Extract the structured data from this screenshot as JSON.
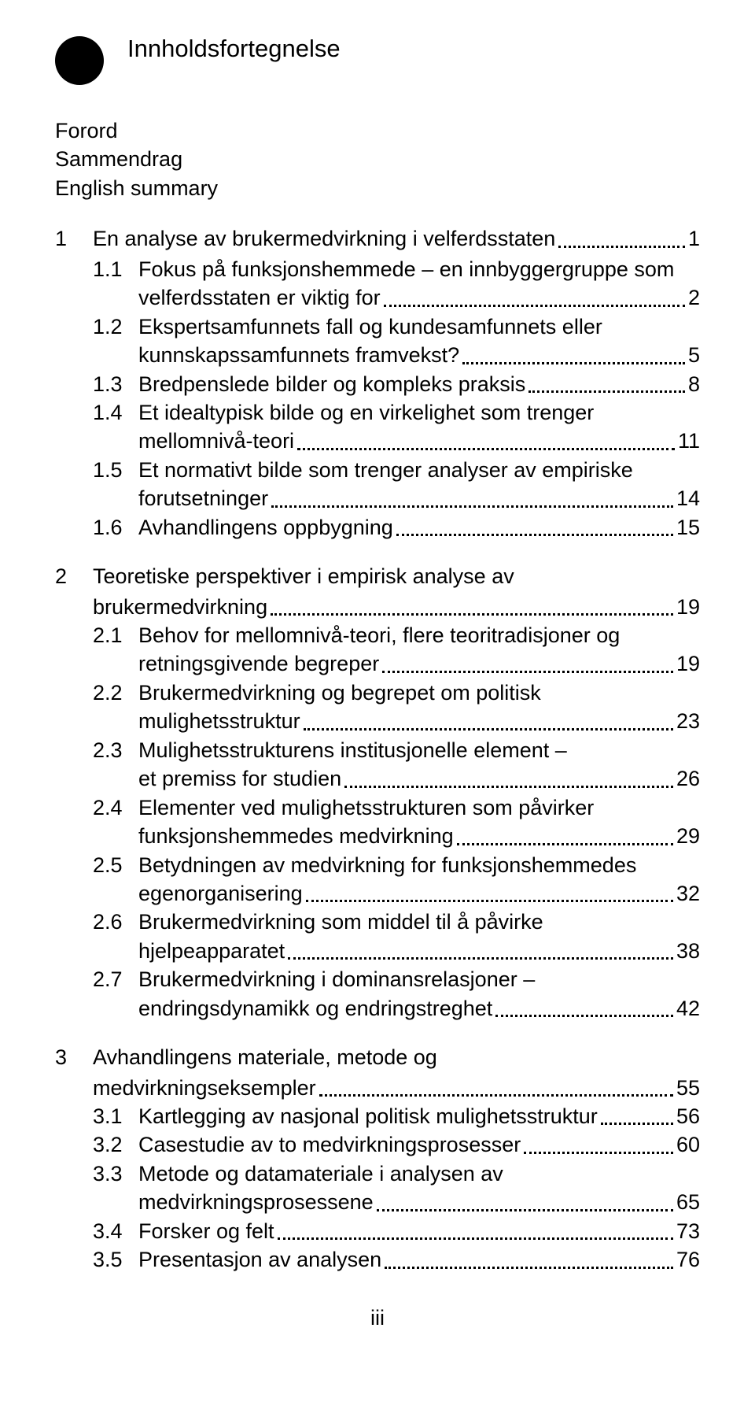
{
  "title": "Innholdsfortegnelse",
  "intro": [
    "Forord",
    "Sammendrag",
    "English summary"
  ],
  "toc": [
    {
      "num": "1",
      "text": "En analyse av brukermedvirkning i velferdsstaten",
      "page": "1",
      "sections": [
        {
          "num": "1.1",
          "lines": [
            "Fokus på funksjonshemmede – en innbyggergruppe som",
            "velferdsstaten er viktig for"
          ],
          "page": "2"
        },
        {
          "num": "1.2",
          "lines": [
            "Ekspertsamfunnets fall og kundesamfunnets eller",
            "kunnskapssamfunnets framvekst?"
          ],
          "page": "5"
        },
        {
          "num": "1.3",
          "lines": [
            "Bredpenslede bilder og kompleks praksis"
          ],
          "page": "8"
        },
        {
          "num": "1.4",
          "lines": [
            "Et idealtypisk bilde og en virkelighet som trenger",
            "mellomnivå-teori"
          ],
          "page": "11"
        },
        {
          "num": "1.5",
          "lines": [
            "Et normativt bilde som trenger analyser av empiriske",
            "forutsetninger"
          ],
          "page": "14"
        },
        {
          "num": "1.6",
          "lines": [
            "Avhandlingens oppbygning"
          ],
          "page": "15"
        }
      ]
    },
    {
      "num": "2",
      "text_lines": [
        "Teoretiske perspektiver i empirisk analyse av",
        "brukermedvirkning"
      ],
      "page": "19",
      "sections": [
        {
          "num": "2.1",
          "lines": [
            "Behov for mellomnivå-teori, flere teoritradisjoner og",
            "retningsgivende begreper"
          ],
          "page": "19"
        },
        {
          "num": "2.2",
          "lines": [
            "Brukermedvirkning og begrepet om politisk",
            "mulighetsstruktur"
          ],
          "page": "23"
        },
        {
          "num": "2.3",
          "lines": [
            "Mulighetsstrukturens institusjonelle element –",
            "et premiss for studien"
          ],
          "page": "26"
        },
        {
          "num": "2.4",
          "lines": [
            "Elementer ved mulighetsstrukturen som påvirker",
            "funksjonshemmedes medvirkning"
          ],
          "page": "29"
        },
        {
          "num": "2.5",
          "lines": [
            "Betydningen av medvirkning for funksjonshemmedes",
            "egenorganisering"
          ],
          "page": "32"
        },
        {
          "num": "2.6",
          "lines": [
            "Brukermedvirkning som middel til å påvirke",
            "hjelpeapparatet"
          ],
          "page": "38"
        },
        {
          "num": "2.7",
          "lines": [
            "Brukermedvirkning i dominansrelasjoner –",
            "endringsdynamikk og endringstreghet"
          ],
          "page": "42"
        }
      ]
    },
    {
      "num": "3",
      "text_lines": [
        "Avhandlingens materiale, metode og",
        "medvirkningseksempler"
      ],
      "page": "55",
      "sections": [
        {
          "num": "3.1",
          "lines": [
            "Kartlegging av nasjonal politisk mulighetsstruktur"
          ],
          "page": "56"
        },
        {
          "num": "3.2",
          "lines": [
            "Casestudie av to medvirkningsprosesser"
          ],
          "page": "60"
        },
        {
          "num": "3.3",
          "lines": [
            "Metode og datamateriale i analysen av",
            "medvirkningsprosessene"
          ],
          "page": "65"
        },
        {
          "num": "3.4",
          "lines": [
            "Forsker og felt"
          ],
          "page": "73"
        },
        {
          "num": "3.5",
          "lines": [
            "Presentasjon av analysen"
          ],
          "page": "76"
        }
      ]
    }
  ],
  "footer_page": "iii",
  "colors": {
    "text": "#000000",
    "background": "#ffffff",
    "bullet": "#000000"
  },
  "fontsize_title": 31,
  "fontsize_body": 27
}
